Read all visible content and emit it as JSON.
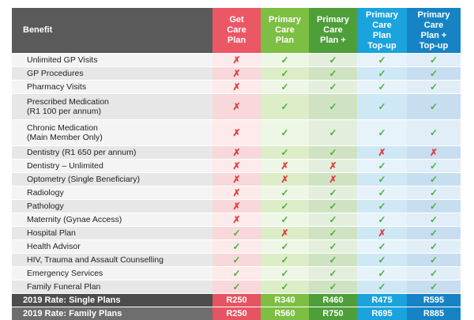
{
  "header": {
    "benefit": "Benefit",
    "plans": [
      [
        "Get",
        "Care",
        "Plan"
      ],
      [
        "Primary",
        "Care",
        "Plan"
      ],
      [
        "Primary",
        "Care",
        "Plan +"
      ],
      [
        "Primary",
        "Care",
        "Plan",
        "Top-up"
      ],
      [
        "Primary",
        "Care",
        "Plan +",
        "Top-up"
      ]
    ]
  },
  "rows": [
    {
      "label": [
        "Unlimited GP Visits"
      ],
      "marks": [
        false,
        true,
        true,
        true,
        true
      ]
    },
    {
      "label": [
        "GP Procedures"
      ],
      "marks": [
        false,
        true,
        true,
        true,
        true
      ]
    },
    {
      "label": [
        "Pharmacy Visits"
      ],
      "marks": [
        false,
        true,
        true,
        true,
        true
      ]
    },
    {
      "label": [
        "Prescribed Medication",
        "(R1 100 per annum)"
      ],
      "marks": [
        false,
        true,
        true,
        true,
        true
      ]
    },
    {
      "label": [
        "Chronic Medication",
        "(Main Member Only)"
      ],
      "marks": [
        false,
        true,
        true,
        true,
        true
      ]
    },
    {
      "label": [
        "Dentistry (R1 650 per annum)"
      ],
      "marks": [
        false,
        true,
        true,
        false,
        false
      ]
    },
    {
      "label": [
        "Dentistry – Unlimited"
      ],
      "marks": [
        false,
        false,
        false,
        true,
        true
      ]
    },
    {
      "label": [
        "Optometry (Single Beneficiary)"
      ],
      "marks": [
        false,
        false,
        false,
        true,
        true
      ]
    },
    {
      "label": [
        "Radiology"
      ],
      "marks": [
        false,
        true,
        true,
        true,
        true
      ]
    },
    {
      "label": [
        "Pathology"
      ],
      "marks": [
        false,
        true,
        true,
        true,
        true
      ]
    },
    {
      "label": [
        "Maternity (Gynae Access)"
      ],
      "marks": [
        false,
        true,
        true,
        true,
        true
      ]
    },
    {
      "label": [
        "Hospital Plan"
      ],
      "marks": [
        true,
        false,
        true,
        false,
        true
      ]
    },
    {
      "label": [
        "Health Advisor"
      ],
      "marks": [
        true,
        true,
        true,
        true,
        true
      ]
    },
    {
      "label": [
        "HIV, Trauma and Assault Counselling"
      ],
      "marks": [
        true,
        true,
        true,
        true,
        true
      ]
    },
    {
      "label": [
        "Emergency Services"
      ],
      "marks": [
        true,
        true,
        true,
        true,
        true
      ]
    },
    {
      "label": [
        "Family Funeral Plan"
      ],
      "marks": [
        true,
        true,
        true,
        true,
        true
      ]
    }
  ],
  "symbols": {
    "yes": "✓",
    "no": "✗"
  },
  "rates": [
    {
      "label": "2019 Rate: Single Plans",
      "values": [
        "R250",
        "R340",
        "R460",
        "R475",
        "R595"
      ]
    },
    {
      "label": "2019 Rate: Family Plans",
      "values": [
        "R250",
        "R560",
        "R750",
        "R695",
        "R885"
      ]
    }
  ],
  "colors": {
    "get_care": "#ec5766",
    "primary_care": "#7cbf42",
    "primary_care_plus": "#4e9e3a",
    "top_up": "#1aa3dc",
    "top_up_plus": "#1683c4",
    "check": "#4caf3b",
    "cross": "#e0403f"
  }
}
